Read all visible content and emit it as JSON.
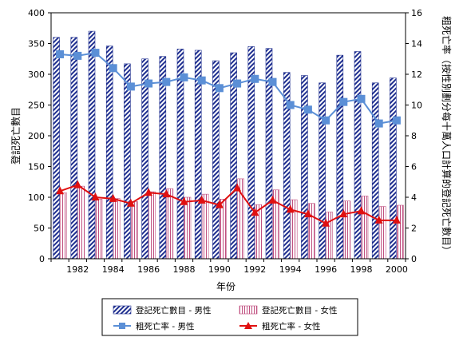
{
  "chart_data": {
    "type": "bar",
    "x": [
      1981,
      1982,
      1983,
      1984,
      1985,
      1986,
      1987,
      1988,
      1989,
      1990,
      1991,
      1992,
      1993,
      1994,
      1995,
      1996,
      1997,
      1998,
      1999,
      2000
    ],
    "x_tick_labels": [
      "1982",
      "1984",
      "1986",
      "1988",
      "1990",
      "1992",
      "1994",
      "1996",
      "1998",
      "2000"
    ],
    "xlabel": "年份",
    "ylabel_left": "登記死亡數目",
    "ylabel_right": "粗死亡率（按性別劃分每十萬人口計算的登記死亡數目）",
    "ylim_left": [
      0,
      400
    ],
    "ylim_right": [
      0,
      16
    ],
    "y_ticks_left": [
      "0",
      "50",
      "100",
      "150",
      "200",
      "250",
      "300",
      "350",
      "400"
    ],
    "y_ticks_right": [
      "0",
      "2",
      "4",
      "6",
      "8",
      "10",
      "12",
      "14",
      "16"
    ],
    "series": [
      {
        "name": "登記死亡數目 - 男性",
        "kind": "bar",
        "axis": "left",
        "color": "#1f2f8f",
        "values": [
          360,
          360,
          370,
          346,
          317,
          325,
          329,
          341,
          339,
          322,
          335,
          345,
          342,
          303,
          298,
          286,
          331,
          337,
          286,
          294
        ]
      },
      {
        "name": "登記死亡數目 - 女性",
        "kind": "bar",
        "axis": "left",
        "color": "#c05080",
        "values": [
          107,
          118,
          97,
          98,
          93,
          109,
          114,
          100,
          105,
          97,
          130,
          88,
          112,
          96,
          90,
          76,
          94,
          102,
          85,
          87
        ]
      },
      {
        "name": "粗死亡率 - 男性",
        "kind": "line",
        "axis": "right",
        "color": "#5b8fd6",
        "values": [
          13.3,
          13.2,
          13.4,
          12.4,
          11.2,
          11.4,
          11.5,
          11.8,
          11.6,
          11.1,
          11.4,
          11.7,
          11.5,
          10.0,
          9.7,
          9.0,
          10.2,
          10.4,
          8.8,
          9.0
        ]
      },
      {
        "name": "粗死亡率 - 女性",
        "kind": "line",
        "axis": "right",
        "color": "#e01010",
        "values": [
          4.4,
          4.8,
          4.0,
          3.9,
          3.6,
          4.3,
          4.2,
          3.7,
          3.8,
          3.5,
          4.6,
          3.0,
          3.8,
          3.2,
          2.9,
          2.3,
          2.9,
          3.1,
          2.5,
          2.5
        ]
      }
    ],
    "legend_position": "bottom",
    "grid": false
  }
}
